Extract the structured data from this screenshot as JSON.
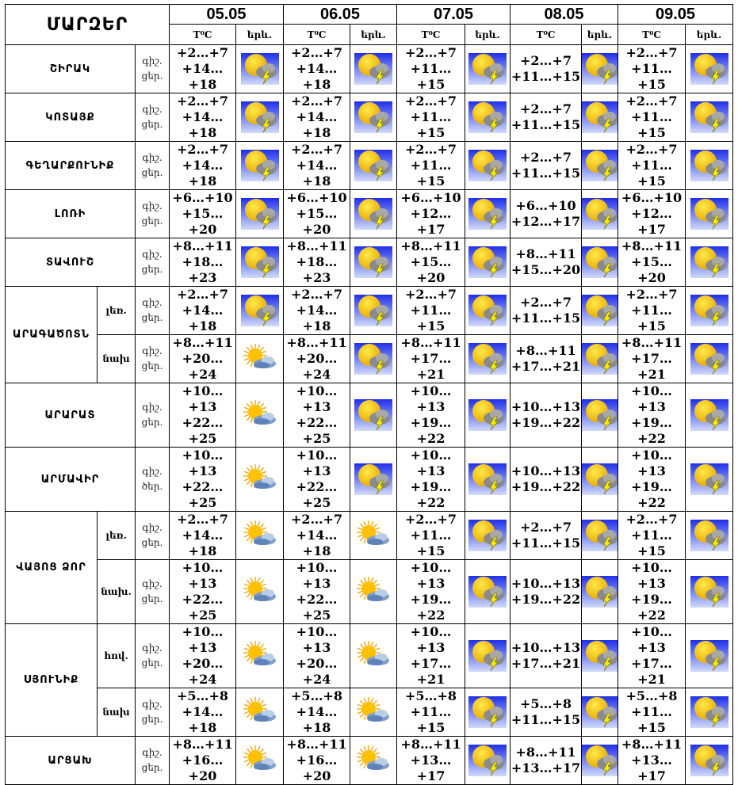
{
  "header": {
    "title": "ՄԱՐԶԵՐ",
    "temp_label": "T⁰C",
    "icon_label": "երև."
  },
  "dates": [
    "05.05",
    "06.05",
    "07.05",
    "08.05",
    "09.05"
  ],
  "labels": {
    "night": "գիշ.",
    "day": "ցեր."
  },
  "rows": [
    {
      "region": "ՇԻՐԱԿ",
      "sub": "",
      "cells": [
        [
          "+2…+7",
          "+14…+18",
          "thunderstorm-icon"
        ],
        [
          "+2…+7",
          "+14…+18",
          "thunderstorm-icon"
        ],
        [
          "+2…+7",
          "+11…+15",
          "thunderstorm-icon"
        ],
        [
          "+2…+7",
          "+11…+15",
          "thunderstorm-icon"
        ],
        [
          "+2…+7",
          "+11…+15",
          "thunderstorm-icon"
        ]
      ]
    },
    {
      "region": "ԿՈՏԱՅՔ",
      "sub": "",
      "cells": [
        [
          "+2…+7",
          "+14…+18",
          "thunderstorm-icon"
        ],
        [
          "+2…+7",
          "+14…+18",
          "thunderstorm-icon"
        ],
        [
          "+2…+7",
          "+11…+15",
          "thunderstorm-icon"
        ],
        [
          "+2…+7",
          "+11…+15",
          "thunderstorm-icon"
        ],
        [
          "+2…+7",
          "+11…+15",
          "thunderstorm-icon"
        ]
      ]
    },
    {
      "region": "ԳԵՂԱՐՔՈՒՆԻՔ",
      "sub": "",
      "cells": [
        [
          "+2…+7",
          "+14…+18",
          "thunderstorm-icon"
        ],
        [
          "+2…+7",
          "+14…+18",
          "thunderstorm-icon"
        ],
        [
          "+2…+7",
          "+11…+15",
          "thunderstorm-icon"
        ],
        [
          "+2…+7",
          "+11…+15",
          "thunderstorm-icon"
        ],
        [
          "+2…+7",
          "+11…+15",
          "thunderstorm-icon"
        ]
      ]
    },
    {
      "region": "ԼՈՌԻ",
      "sub": "",
      "cells": [
        [
          "+6…+10",
          "+15…+20",
          "thunderstorm-icon"
        ],
        [
          "+6…+10",
          "+15…+20",
          "thunderstorm-icon"
        ],
        [
          "+6…+10",
          "+12…+17",
          "thunderstorm-icon"
        ],
        [
          "+6…+10",
          "+12…+17",
          "thunderstorm-icon"
        ],
        [
          "+6…+10",
          "+12…+17",
          "thunderstorm-icon"
        ]
      ]
    },
    {
      "region": "ՏԱՎՈՒՇ",
      "sub": "",
      "cells": [
        [
          "+8…+11",
          "+18…+23",
          "thunderstorm-icon"
        ],
        [
          "+8…+11",
          "+18…+23",
          "thunderstorm-icon"
        ],
        [
          "+8…+11",
          "+15…+20",
          "thunderstorm-icon"
        ],
        [
          "+8…+11",
          "+15…+20",
          "thunderstorm-icon"
        ],
        [
          "+8…+11",
          "+15…+20",
          "thunderstorm-icon"
        ]
      ]
    },
    {
      "region": "ԱՐԱԳԱԾՈՏՆ",
      "sub": "լեռ.",
      "span": 2,
      "cells": [
        [
          "+2…+7",
          "+14…+18",
          "thunderstorm-icon"
        ],
        [
          "+2…+7",
          "+14…+18",
          "thunderstorm-icon"
        ],
        [
          "+2…+7",
          "+11…+15",
          "thunderstorm-icon"
        ],
        [
          "+2…+7",
          "+11…+15",
          "thunderstorm-icon"
        ],
        [
          "+2…+7",
          "+11…+15",
          "thunderstorm-icon"
        ]
      ]
    },
    {
      "region": "",
      "sub": "նախ",
      "cells": [
        [
          "+8…+11",
          "+20…+24",
          "partly-sunny-icon"
        ],
        [
          "+8…+11",
          "+20…+24",
          "thunderstorm-icon"
        ],
        [
          "+8…+11",
          "+17…+21",
          "thunderstorm-icon"
        ],
        [
          "+8…+11",
          "+17…+21",
          "thunderstorm-icon"
        ],
        [
          "+8…+11",
          "+17…+21",
          "thunderstorm-icon"
        ]
      ]
    },
    {
      "region": "ԱՐԱՐԱՏ",
      "sub": "",
      "cells": [
        [
          "+10…+13",
          "+22…+25",
          "partly-sunny-icon"
        ],
        [
          "+10…+13",
          "+22…+25",
          "thunderstorm-icon"
        ],
        [
          "+10…+13",
          "+19…+22",
          "thunderstorm-icon"
        ],
        [
          "+10…+13",
          "+19…+22",
          "thunderstorm-icon"
        ],
        [
          "+10…+13",
          "+19…+22",
          "thunderstorm-icon"
        ]
      ]
    },
    {
      "region": "ԱՐՄԱՎԻՐ",
      "sub": "",
      "day_label": "ծեր.",
      "cells": [
        [
          "+10…+13",
          "+22…+25",
          "partly-sunny-icon"
        ],
        [
          "+10…+13",
          "+22…+25",
          "thunderstorm-icon"
        ],
        [
          "+10…+13",
          "+19…+22",
          "thunderstorm-icon"
        ],
        [
          "+10…+13",
          "+19…+22",
          "thunderstorm-icon"
        ],
        [
          "+10…+13",
          "+19…+22",
          "thunderstorm-icon"
        ]
      ]
    },
    {
      "region": "ՎԱՅՈՑ ՁՈՐ",
      "sub": "լեռ.",
      "span": 2,
      "cells": [
        [
          "+2…+7",
          "+14…+18",
          "partly-sunny-icon"
        ],
        [
          "+2…+7",
          "+14…+18",
          "partly-sunny-icon"
        ],
        [
          "+2…+7",
          "+11…+15",
          "thunderstorm-icon"
        ],
        [
          "+2…+7",
          "+11…+15",
          "thunderstorm-icon"
        ],
        [
          "+2…+7",
          "+11…+15",
          "thunderstorm-icon"
        ]
      ]
    },
    {
      "region": "",
      "sub": "նախ.",
      "cells": [
        [
          "+10…+13",
          "+22…+25",
          "partly-sunny-icon"
        ],
        [
          "+10…+13",
          "+22…+25",
          "partly-sunny-icon"
        ],
        [
          "+10…+13",
          "+19…+22",
          "thunderstorm-icon"
        ],
        [
          "+10…+13",
          "+19…+22",
          "thunderstorm-icon"
        ],
        [
          "+10…+13",
          "+19…+22",
          "thunderstorm-icon"
        ]
      ]
    },
    {
      "region": "ՍՅՈՒՆԻՔ",
      "sub": "հով.",
      "span": 2,
      "cells": [
        [
          "+10…+13",
          "+20…+24",
          "partly-sunny-icon"
        ],
        [
          "+10…+13",
          "+20…+24",
          "partly-sunny-icon"
        ],
        [
          "+10…+13",
          "+17…+21",
          "thunderstorm-icon"
        ],
        [
          "+10…+13",
          "+17…+21",
          "thunderstorm-icon"
        ],
        [
          "+10…+13",
          "+17…+21",
          "thunderstorm-icon"
        ]
      ]
    },
    {
      "region": "",
      "sub": "նախ",
      "cells": [
        [
          "+5…+8",
          "+14…+18",
          "partly-sunny-icon"
        ],
        [
          "+5…+8",
          "+14…+18",
          "partly-sunny-icon"
        ],
        [
          "+5…+8",
          "+11…+15",
          "thunderstorm-icon"
        ],
        [
          "+5…+8",
          "+11…+15",
          "thunderstorm-icon"
        ],
        [
          "+5…+8",
          "+11…+15",
          "thunderstorm-icon"
        ]
      ]
    },
    {
      "region": "ԱՐՑԱԽ",
      "sub": "",
      "cells": [
        [
          "+8…+11",
          "+16…+20",
          "partly-sunny-icon"
        ],
        [
          "+8…+11",
          "+16…+20",
          "partly-sunny-icon"
        ],
        [
          "+8…+11",
          "+13…+17",
          "thunderstorm-icon"
        ],
        [
          "+8…+11",
          "+13…+17",
          "thunderstorm-icon"
        ],
        [
          "+8…+11",
          "+13…+17",
          "thunderstorm-icon"
        ]
      ]
    }
  ],
  "colors": {
    "border": "#000000",
    "storm_bg_top": "#2a3cf0",
    "storm_bg_bottom": "#c8d4f8",
    "sun": "#f5c800"
  }
}
